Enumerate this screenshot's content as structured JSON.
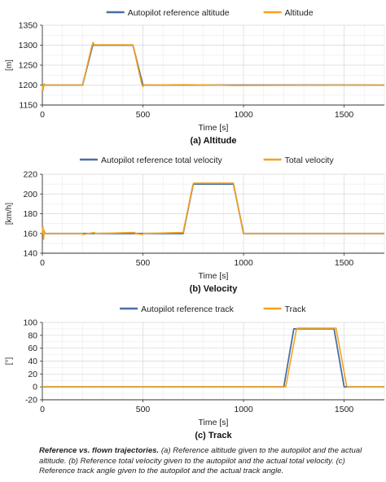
{
  "colors": {
    "reference": "#4a6fa5",
    "actual": "#f5a21b",
    "grid": "#e2e2e2",
    "axis": "#333333"
  },
  "caption": {
    "title": "Reference vs. flown trajectories.",
    "text": "(a) Reference altitude given to the autopilot and the actual altitude. (b) Reference total velocity given to the autopilot and the actual total velocity. (c) Reference track angle given to the autopilot and the actual track angle."
  },
  "chart_data": [
    {
      "type": "line",
      "panel_label": "(a)  Altitude",
      "xlabel": "Time [s]",
      "ylabel": "[m]",
      "xlim": [
        0,
        1700
      ],
      "ylim": [
        1150,
        1350
      ],
      "xticks": [
        0,
        500,
        1000,
        1500
      ],
      "yticks": [
        1150,
        1200,
        1250,
        1300,
        1350
      ],
      "grid": true,
      "legend": "top-center",
      "series": [
        {
          "name": "Autopilot reference altitude",
          "role": "reference",
          "x": [
            0,
            5,
            15,
            200,
            250,
            450,
            500,
            1700
          ],
          "y": [
            1200,
            1200,
            1200,
            1200,
            1300,
            1300,
            1200,
            1200
          ]
        },
        {
          "name": "Altitude",
          "role": "actual",
          "x": [
            0,
            3,
            6,
            9,
            14,
            20,
            200,
            245,
            252,
            258,
            450,
            493,
            500,
            506,
            700,
            950,
            1000,
            1700
          ],
          "y": [
            1200,
            1185,
            1196,
            1203,
            1200,
            1200,
            1200,
            1296,
            1307,
            1301,
            1301,
            1204,
            1196,
            1200,
            1201,
            1199,
            1199,
            1200
          ]
        }
      ]
    },
    {
      "type": "line",
      "panel_label": "(b)  Velocity",
      "xlabel": "Time [s]",
      "ylabel": "[km/h]",
      "xlim": [
        0,
        1700
      ],
      "ylim": [
        140,
        220
      ],
      "xticks": [
        0,
        500,
        1000,
        1500
      ],
      "yticks": [
        140,
        160,
        180,
        200,
        220
      ],
      "grid": true,
      "legend": "top-center",
      "series": [
        {
          "name": "Autopilot reference total velocity",
          "role": "reference",
          "x": [
            0,
            700,
            750,
            950,
            1000,
            1700
          ],
          "y": [
            160,
            160,
            210,
            210,
            160,
            160
          ]
        },
        {
          "name": "Total velocity",
          "role": "actual",
          "x": [
            0,
            3,
            6,
            9,
            14,
            200,
            202,
            260,
            262,
            460,
            462,
            500,
            502,
            700,
            748,
            752,
            950,
            998,
            1002,
            1700
          ],
          "y": [
            160,
            167,
            154,
            163,
            160,
            160,
            159,
            161,
            160,
            161,
            160,
            159,
            160,
            161,
            209,
            211,
            211,
            161,
            160,
            160
          ]
        }
      ]
    },
    {
      "type": "line",
      "panel_label": "(c)  Track",
      "xlabel": "Time [s]",
      "ylabel": "[°]",
      "xlim": [
        0,
        1700
      ],
      "ylim": [
        -20,
        100
      ],
      "xticks": [
        0,
        500,
        1000,
        1500
      ],
      "yticks": [
        -20,
        0,
        20,
        40,
        60,
        80,
        100
      ],
      "grid": true,
      "legend": "top-center",
      "series": [
        {
          "name": "Autopilot reference track",
          "role": "reference",
          "x": [
            0,
            1200,
            1250,
            1450,
            1500,
            1700
          ],
          "y": [
            0,
            0,
            90,
            90,
            0,
            0
          ]
        },
        {
          "name": "Track",
          "role": "actual",
          "x": [
            0,
            1210,
            1262,
            1268,
            1460,
            1512,
            1518,
            1700
          ],
          "y": [
            0,
            0,
            88,
            91,
            91,
            2,
            0,
            0
          ]
        }
      ]
    }
  ]
}
